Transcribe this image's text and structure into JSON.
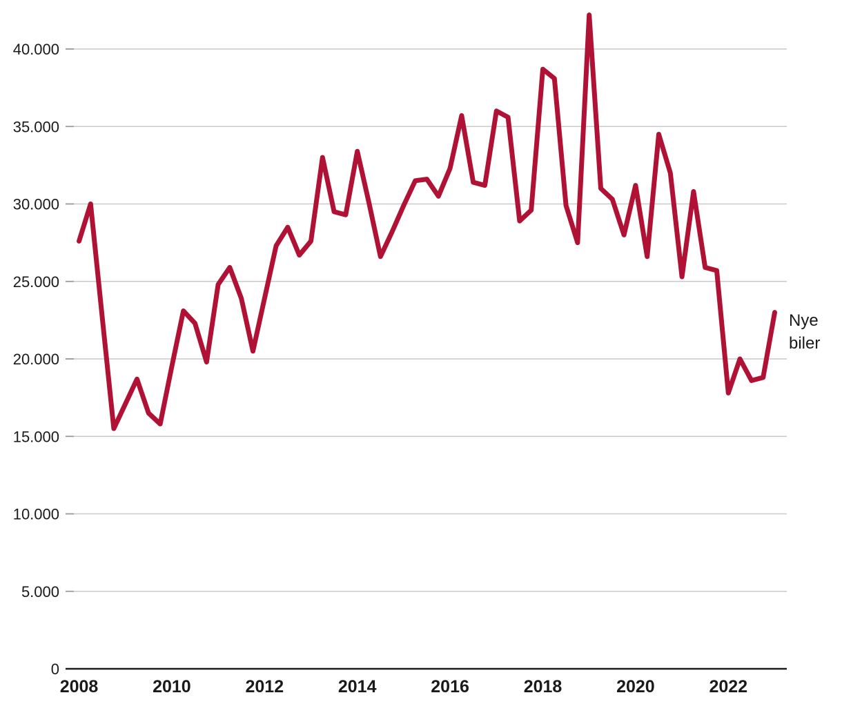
{
  "chart_data": {
    "type": "line",
    "title": "",
    "xlabel": "",
    "ylabel": "",
    "grid": "horizontal",
    "legend_position": "right-of-line-end",
    "ylim": [
      0,
      42500
    ],
    "y_ticks": [
      {
        "value": 0,
        "label": "0"
      },
      {
        "value": 5000,
        "label": "5.000"
      },
      {
        "value": 10000,
        "label": "10.000"
      },
      {
        "value": 15000,
        "label": "15.000"
      },
      {
        "value": 20000,
        "label": "20.000"
      },
      {
        "value": 25000,
        "label": "25.000"
      },
      {
        "value": 30000,
        "label": "30.000"
      },
      {
        "value": 35000,
        "label": "35.000"
      },
      {
        "value": 40000,
        "label": "40.000"
      }
    ],
    "x_ticks": [
      {
        "label": "2008",
        "quarter_index": 0
      },
      {
        "label": "2010",
        "quarter_index": 8
      },
      {
        "label": "2012",
        "quarter_index": 16
      },
      {
        "label": "2014",
        "quarter_index": 24
      },
      {
        "label": "2016",
        "quarter_index": 32
      },
      {
        "label": "2018",
        "quarter_index": 40
      },
      {
        "label": "2020",
        "quarter_index": 48
      },
      {
        "label": "2022",
        "quarter_index": 56
      }
    ],
    "quarters": [
      "2008K1",
      "2008K2",
      "2008K3",
      "2008K4",
      "2009K1",
      "2009K2",
      "2009K3",
      "2009K4",
      "2010K1",
      "2010K2",
      "2010K3",
      "2010K4",
      "2011K1",
      "2011K2",
      "2011K3",
      "2011K4",
      "2012K1",
      "2012K2",
      "2012K3",
      "2012K4",
      "2013K1",
      "2013K2",
      "2013K3",
      "2013K4",
      "2014K1",
      "2014K2",
      "2014K3",
      "2014K4",
      "2015K1",
      "2015K2",
      "2015K3",
      "2015K4",
      "2016K1",
      "2016K2",
      "2016K3",
      "2016K4",
      "2017K1",
      "2017K2",
      "2017K3",
      "2017K4",
      "2018K1",
      "2018K2",
      "2018K3",
      "2018K4",
      "2019K1",
      "2019K2",
      "2019K3",
      "2019K4",
      "2020K1",
      "2020K2",
      "2020K3",
      "2020K4",
      "2021K1",
      "2021K2",
      "2021K3",
      "2021K4",
      "2022K1",
      "2022K2",
      "2022K3",
      "2022K4",
      "2023K1"
    ],
    "series": [
      {
        "name": "Nye biler",
        "color": "#b01235",
        "values": [
          27600,
          30000,
          22700,
          15500,
          17100,
          18700,
          16500,
          15800,
          19500,
          23100,
          22300,
          19800,
          24800,
          25900,
          23900,
          20500,
          23900,
          27300,
          28500,
          26700,
          27600,
          33000,
          29500,
          29300,
          33400,
          30100,
          26600,
          28200,
          29900,
          31500,
          31600,
          30500,
          32300,
          35700,
          31400,
          31200,
          36000,
          35600,
          28900,
          29600,
          38700,
          38100,
          29900,
          27500,
          42200,
          31000,
          30300,
          28000,
          31200,
          26600,
          34500,
          32000,
          25300,
          30800,
          25900,
          25700,
          17800,
          20000,
          18600,
          18800,
          23000
        ]
      }
    ],
    "annotation": {
      "line1": "Nye",
      "line2": "biler"
    },
    "colors": {
      "line": "#b01235",
      "grid": "#c9c9c9",
      "tick_stub": "#999999",
      "axis": "#1a1a1a",
      "text": "#1a1a1a"
    }
  }
}
